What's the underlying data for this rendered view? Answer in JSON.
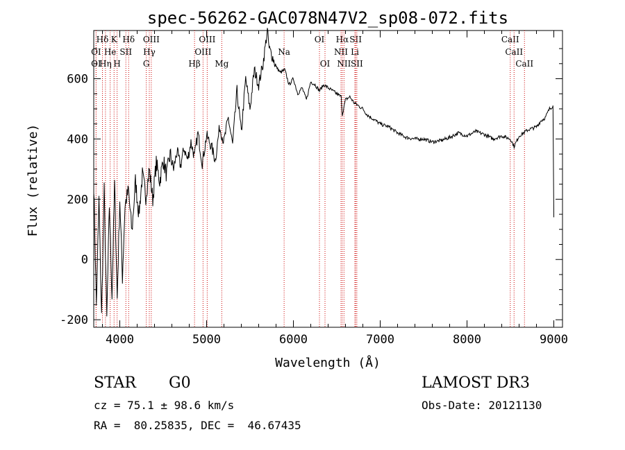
{
  "chart_data": {
    "type": "line",
    "title": "spec-56262-GAC078N47V2_sp08-072.fits",
    "xlabel": "Wavelength (Å)",
    "ylabel": "Flux (relative)",
    "xlim": [
      3700,
      9100
    ],
    "ylim": [
      -225,
      760
    ],
    "xticks": [
      4000,
      5000,
      6000,
      7000,
      8000,
      9000
    ],
    "yticks": [
      -200,
      0,
      200,
      400,
      600
    ],
    "series": [
      {
        "name": "flux",
        "x": [
          3700,
          3730,
          3760,
          3790,
          3820,
          3850,
          3880,
          3910,
          3940,
          3970,
          4000,
          4030,
          4060,
          4100,
          4140,
          4180,
          4220,
          4260,
          4300,
          4340,
          4380,
          4420,
          4460,
          4500,
          4540,
          4580,
          4620,
          4660,
          4700,
          4740,
          4780,
          4820,
          4860,
          4900,
          4950,
          5000,
          5050,
          5100,
          5150,
          5200,
          5250,
          5300,
          5350,
          5400,
          5450,
          5500,
          5550,
          5600,
          5650,
          5700,
          5720,
          5750,
          5800,
          5850,
          5900,
          5950,
          6000,
          6050,
          6100,
          6150,
          6200,
          6250,
          6300,
          6350,
          6400,
          6450,
          6500,
          6550,
          6563,
          6600,
          6650,
          6700,
          6750,
          6800,
          6850,
          6900,
          6950,
          7000,
          7050,
          7100,
          7200,
          7300,
          7400,
          7500,
          7600,
          7700,
          7800,
          7900,
          8000,
          8100,
          8200,
          8300,
          8400,
          8500,
          8542,
          8600,
          8700,
          8800,
          8850,
          8900,
          8950,
          8990,
          9000
        ],
        "y": [
          250,
          -150,
          200,
          -190,
          230,
          -200,
          180,
          -120,
          250,
          -130,
          200,
          -60,
          180,
          230,
          90,
          260,
          150,
          280,
          210,
          300,
          200,
          320,
          260,
          330,
          280,
          350,
          300,
          360,
          310,
          370,
          330,
          390,
          340,
          420,
          320,
          410,
          380,
          330,
          440,
          390,
          470,
          380,
          560,
          420,
          600,
          500,
          630,
          580,
          650,
          760,
          700,
          680,
          640,
          620,
          630,
          580,
          600,
          550,
          570,
          530,
          590,
          580,
          560,
          580,
          570,
          560,
          550,
          540,
          480,
          530,
          540,
          520,
          510,
          500,
          480,
          470,
          460,
          450,
          445,
          440,
          420,
          405,
          400,
          400,
          390,
          395,
          405,
          420,
          410,
          425,
          415,
          400,
          410,
          400,
          375,
          410,
          430,
          440,
          460,
          470,
          500,
          510,
          140
        ]
      }
    ],
    "lines": [
      {
        "label": "Hδ",
        "x": 3800,
        "row": 1
      },
      {
        "label": "K",
        "x": 3934,
        "row": 1
      },
      {
        "label": "Hδ",
        "x": 4102,
        "row": 1
      },
      {
        "label": "OIII",
        "x": 4363,
        "row": 1
      },
      {
        "label": "OIII",
        "x": 5007,
        "row": 1
      },
      {
        "label": "OI",
        "x": 6300,
        "row": 1
      },
      {
        "label": "Hα",
        "x": 6563,
        "row": 1
      },
      {
        "label": "SII",
        "x": 6717,
        "row": 1
      },
      {
        "label": "CaII",
        "x": 8498,
        "row": 1
      },
      {
        "label": "OI",
        "x": 3727,
        "row": 2
      },
      {
        "label": "He",
        "x": 3889,
        "row": 2
      },
      {
        "label": "SII",
        "x": 4070,
        "row": 2
      },
      {
        "label": "Hγ",
        "x": 4340,
        "row": 2
      },
      {
        "label": "OIII",
        "x": 4959,
        "row": 2
      },
      {
        "label": "Na",
        "x": 5893,
        "row": 2
      },
      {
        "label": "NII",
        "x": 6548,
        "row": 2
      },
      {
        "label": "Li",
        "x": 6708,
        "row": 2
      },
      {
        "label": "CaII",
        "x": 8542,
        "row": 2
      },
      {
        "label": "OI",
        "x": 3727,
        "row": 3
      },
      {
        "label": "Hη",
        "x": 3835,
        "row": 3
      },
      {
        "label": "H",
        "x": 3969,
        "row": 3
      },
      {
        "label": "G",
        "x": 4305,
        "row": 3
      },
      {
        "label": "Hβ",
        "x": 4861,
        "row": 3
      },
      {
        "label": "Mg",
        "x": 5175,
        "row": 3
      },
      {
        "label": "OI",
        "x": 6364,
        "row": 3
      },
      {
        "label": "NII",
        "x": 6583,
        "row": 3
      },
      {
        "label": "SII",
        "x": 6731,
        "row": 3
      },
      {
        "label": "CaII",
        "x": 8662,
        "row": 3
      }
    ]
  },
  "info": {
    "class": "STAR",
    "subclass": "G0",
    "survey": "LAMOST DR3",
    "cz": "cz = 75.1 ± 98.6 km/s",
    "obs_date": "Obs-Date: 20121130",
    "coords": "RA =  80.25835, DEC =  46.67435"
  }
}
